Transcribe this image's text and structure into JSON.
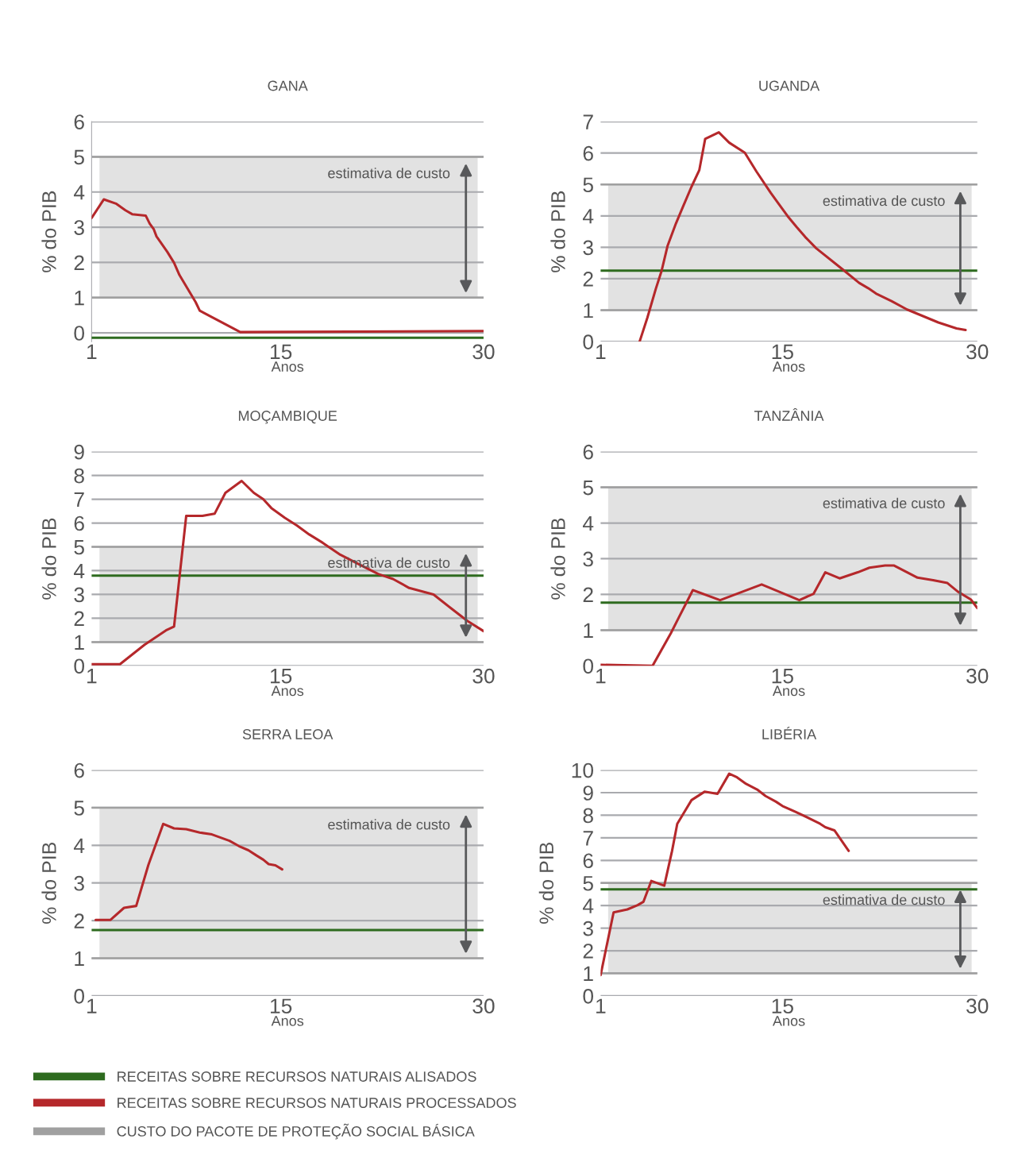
{
  "chart_data": [
    {
      "type": "line",
      "title": "GANA",
      "xlabel": "Anos",
      "ylabel": "% do PIB",
      "xlim": [
        1,
        30
      ],
      "xticks": [
        1,
        15,
        30
      ],
      "ylim": [
        -0.25,
        6
      ],
      "yticks": [
        0,
        1,
        2,
        3,
        4,
        5,
        6
      ],
      "grid": "y",
      "legend": "bottom",
      "bands": [
        {
          "axis": "y",
          "from": 1,
          "to": 5,
          "color": "#a0a0a0",
          "label": "CUSTO DO PACOTE DE PROTEÇÃO SOCIAL BÁSICA"
        }
      ],
      "series": [
        {
          "name": "RECEITAS SOBRE RECURSOS NATURAIS ALISADOS",
          "color": "#2e6b1f",
          "x": [
            1,
            30
          ],
          "values": [
            -0.14,
            -0.14
          ]
        },
        {
          "name": "RECEITAS SOBRE RECURSOS NATURAIS PROCESSADOS",
          "color": "#b5282b",
          "x": [
            1,
            1.9,
            2.8,
            3.5,
            4.0,
            5.0,
            5.3,
            5.6,
            5.8,
            6.6,
            7.1,
            7.5,
            8.7,
            9.0,
            12.0,
            30
          ],
          "values": [
            3.26,
            3.79,
            3.67,
            3.48,
            3.37,
            3.33,
            3.1,
            2.94,
            2.74,
            2.3,
            1.99,
            1.64,
            0.87,
            0.63,
            0.02,
            0.05
          ]
        }
      ],
      "annotations": [
        "estimativa de custo"
      ]
    },
    {
      "type": "line",
      "title": "UGANDA",
      "xlabel": "Anos",
      "ylabel": "% do PIB",
      "xlim": [
        1,
        30
      ],
      "xticks": [
        1,
        15,
        30
      ],
      "ylim": [
        0,
        7
      ],
      "yticks": [
        0,
        1,
        2,
        3,
        4,
        5,
        6,
        7
      ],
      "grid": "y",
      "bands": [
        {
          "axis": "y",
          "from": 1,
          "to": 5,
          "color": "#a0a0a0"
        }
      ],
      "series": [
        {
          "color": "#2e6b1f",
          "x": [
            1,
            30
          ],
          "values": [
            2.26,
            2.26
          ]
        },
        {
          "color": "#b5282b",
          "x": [
            4.0,
            4.6,
            5.25,
            5.7,
            6.15,
            6.8,
            7.35,
            8.0,
            8.6,
            9.05,
            10.1,
            10.9,
            12.1,
            13.0,
            14.1,
            15.4,
            16.1,
            16.75,
            17.6,
            19.6,
            20.9,
            21.6,
            22.2,
            23.4,
            24.6,
            25.6,
            27.0,
            28.4,
            29.1
          ],
          "values": [
            0,
            0.76,
            1.68,
            2.26,
            3.04,
            3.76,
            4.3,
            4.93,
            5.46,
            6.45,
            6.66,
            6.33,
            6.01,
            5.41,
            4.73,
            3.99,
            3.64,
            3.33,
            2.97,
            2.31,
            1.87,
            1.7,
            1.53,
            1.29,
            1.02,
            0.85,
            0.61,
            0.42,
            0.37
          ]
        }
      ],
      "annotations": [
        "estimativa de custo"
      ]
    },
    {
      "type": "line",
      "title": "MOÇAMBIQUE",
      "xlabel": "Anos",
      "ylabel": "% do PIB",
      "xlim": [
        1,
        30
      ],
      "xticks": [
        1,
        15,
        30
      ],
      "ylim": [
        0,
        9
      ],
      "yticks": [
        0,
        1,
        2,
        3,
        4,
        5,
        6,
        7,
        8,
        9
      ],
      "grid": "y",
      "bands": [
        {
          "axis": "y",
          "from": 1,
          "to": 5,
          "color": "#a0a0a0"
        }
      ],
      "series": [
        {
          "color": "#2e6b1f",
          "x": [
            1,
            30
          ],
          "values": [
            3.79,
            3.79
          ]
        },
        {
          "color": "#b5282b",
          "x": [
            1,
            3.1,
            4.9,
            6.5,
            7.1,
            8.0,
            9.2,
            10.1,
            10.9,
            12.1,
            13.0,
            13.7,
            14.3,
            15.3,
            16.2,
            17.1,
            18.1,
            19.4,
            20.8,
            22.2,
            23.3,
            24.5,
            26.3,
            27.7,
            28.8,
            30
          ],
          "values": [
            0.07,
            0.07,
            0.88,
            1.49,
            1.65,
            6.3,
            6.3,
            6.39,
            7.27,
            7.77,
            7.27,
            7.0,
            6.63,
            6.22,
            5.89,
            5.52,
            5.17,
            4.67,
            4.26,
            3.86,
            3.65,
            3.27,
            3.0,
            2.37,
            1.89,
            1.46
          ]
        }
      ],
      "annotations": [
        "estimativa de custo"
      ]
    },
    {
      "type": "line",
      "title": "TANZÂNIA",
      "xlabel": "Anos",
      "ylabel": "% do PIB",
      "xlim": [
        1,
        30
      ],
      "xticks": [
        1,
        15,
        30
      ],
      "ylim": [
        0,
        6
      ],
      "yticks": [
        0,
        1,
        2,
        3,
        4,
        5,
        6
      ],
      "grid": "y",
      "bands": [
        {
          "axis": "y",
          "from": 1,
          "to": 5,
          "color": "#a0a0a0"
        }
      ],
      "series": [
        {
          "color": "#2e6b1f",
          "x": [
            1,
            30
          ],
          "values": [
            1.77,
            1.77
          ]
        },
        {
          "color": "#b5282b",
          "x": [
            1,
            5.0,
            6.4,
            7.0,
            8.1,
            10.2,
            13.4,
            16.3,
            17.4,
            18.3,
            19.4,
            20.8,
            21.7,
            22.9,
            23.6,
            25.4,
            26.6,
            27.7,
            28.5,
            29.5,
            30
          ],
          "values": [
            0.03,
            0,
            0.91,
            1.34,
            2.12,
            1.84,
            2.28,
            1.84,
            2.02,
            2.62,
            2.45,
            2.62,
            2.75,
            2.81,
            2.81,
            2.47,
            2.4,
            2.32,
            2.08,
            1.86,
            1.62
          ]
        }
      ],
      "annotations": [
        "estimativa de custo"
      ]
    },
    {
      "type": "line",
      "title": "SERRA LEOA",
      "xlabel": "Anos",
      "ylabel": "% do PIB",
      "xlim": [
        1,
        30
      ],
      "xticks": [
        1,
        15,
        30
      ],
      "ylim": [
        0,
        6
      ],
      "yticks": [
        0,
        1,
        2,
        3,
        4,
        5,
        6
      ],
      "grid": "y",
      "bands": [
        {
          "axis": "y",
          "from": 1,
          "to": 5,
          "color": "#a0a0a0"
        }
      ],
      "series": [
        {
          "color": "#2e6b1f",
          "x": [
            1,
            30
          ],
          "values": [
            1.75,
            1.75
          ]
        },
        {
          "color": "#b5282b",
          "x": [
            1.3,
            2.4,
            3.4,
            4.3,
            5.2,
            6.3,
            7.1,
            8.0,
            9.0,
            9.9,
            11.2,
            11.9,
            12.6,
            13.2,
            13.7,
            14.1,
            14.6,
            15.1
          ],
          "values": [
            2.02,
            2.02,
            2.34,
            2.39,
            3.48,
            4.57,
            4.45,
            4.43,
            4.34,
            4.29,
            4.12,
            3.98,
            3.87,
            3.73,
            3.62,
            3.5,
            3.47,
            3.36
          ]
        }
      ],
      "annotations": [
        "estimativa de custo"
      ]
    },
    {
      "type": "line",
      "title": "LIBÉRIA",
      "xlabel": "Anos",
      "ylabel": "% do PIB",
      "xlim": [
        1,
        30
      ],
      "xticks": [
        1,
        15,
        30
      ],
      "ylim": [
        0,
        10
      ],
      "yticks": [
        0,
        1,
        2,
        3,
        4,
        5,
        6,
        7,
        8,
        9,
        10
      ],
      "grid": "y",
      "bands": [
        {
          "axis": "y",
          "from": 1,
          "to": 5,
          "color": "#a0a0a0"
        }
      ],
      "series": [
        {
          "color": "#2e6b1f",
          "x": [
            1,
            30
          ],
          "values": [
            4.72,
            4.72
          ]
        },
        {
          "color": "#b5282b",
          "x": [
            1,
            2.0,
            3.06,
            3.85,
            4.3,
            4.9,
            5.9,
            6.5,
            6.9,
            8.0,
            9.0,
            10.0,
            10.9,
            11.5,
            12.2,
            13.05,
            13.7,
            14.5,
            15.0,
            16.0,
            17.0,
            17.9,
            18.3,
            19.0,
            20.1
          ],
          "values": [
            0.92,
            3.7,
            3.83,
            4.02,
            4.17,
            5.09,
            4.88,
            6.42,
            7.62,
            8.67,
            9.04,
            8.95,
            9.84,
            9.68,
            9.39,
            9.14,
            8.85,
            8.6,
            8.41,
            8.15,
            7.88,
            7.62,
            7.47,
            7.33,
            6.42
          ]
        }
      ],
      "annotations": [
        "estimativa de custo"
      ]
    }
  ]
}
